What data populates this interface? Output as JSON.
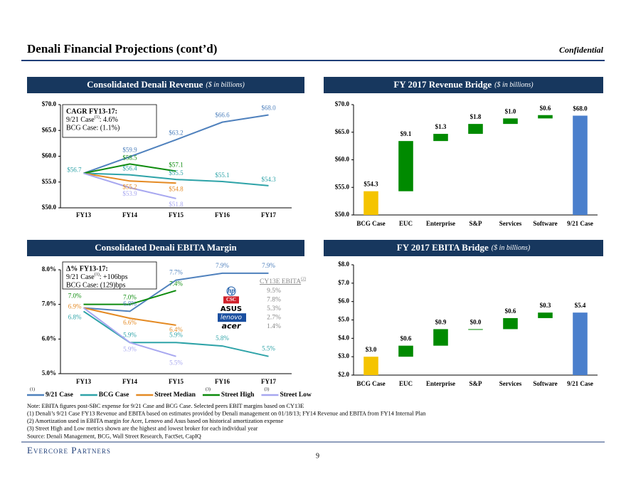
{
  "header": {
    "title": "Denali Financial Projections (cont’d)",
    "label": "Confidential"
  },
  "chart_data": [
    {
      "type": "line",
      "title": "Consolidated Denali Revenue",
      "subtitle": "($ in billions)",
      "categories": [
        "FY13",
        "FY14",
        "FY15",
        "FY16",
        "FY17"
      ],
      "ylim": [
        50,
        70
      ],
      "yticks": [
        {
          "value": 50,
          "label": "$50.0"
        },
        {
          "value": 55,
          "label": "$55.0"
        },
        {
          "value": 60,
          "label": "$60.0"
        },
        {
          "value": 65,
          "label": "$65.0"
        },
        {
          "value": 70,
          "label": "$70.0"
        }
      ],
      "series": [
        {
          "color": "#4f81bd",
          "values": [
            56.7,
            59.9,
            63.2,
            66.6,
            68.0
          ],
          "value_labels": [
            null,
            "$59.9",
            "$63.2",
            "$66.6",
            "$68.0"
          ]
        },
        {
          "color": "#2ea3a8",
          "values": [
            56.7,
            56.4,
            55.5,
            55.1,
            54.3
          ],
          "value_labels": [
            "$56.7",
            "$56.4",
            "$55.5",
            "$55.1",
            "$54.3"
          ]
        },
        {
          "color": "#e48a24",
          "values": [
            56.7,
            55.2,
            54.8,
            null,
            null
          ],
          "value_labels": [
            null,
            "$55.2",
            "$54.8",
            null,
            null
          ]
        },
        {
          "color": "#0d8b0d",
          "values": [
            56.7,
            58.5,
            57.1,
            null,
            null
          ],
          "value_labels": [
            null,
            "$58.5",
            "$57.1",
            null,
            null
          ]
        },
        {
          "color": "#a7a7f0",
          "values": [
            56.7,
            53.9,
            51.8,
            null,
            null
          ],
          "value_labels": [
            null,
            "$53.9",
            "$51.8",
            null,
            null
          ]
        }
      ],
      "annotation": {
        "title": "CAGR FY13-17:",
        "lines": [
          {
            "text": "9/21 Case",
            "sup": "(1)",
            "tail": ": 4.6%"
          },
          {
            "text": "BCG Case: (1.1%)"
          }
        ]
      }
    },
    {
      "type": "waterfall",
      "title": "FY 2017 Revenue Bridge",
      "subtitle": "($ in billions)",
      "categories": [
        "BCG Case",
        "EUC",
        "Enterprise",
        "S&P",
        "Services",
        "Software",
        "9/21 Case"
      ],
      "values": [
        54.3,
        9.1,
        1.3,
        1.8,
        1.0,
        0.6,
        68.0
      ],
      "value_labels": [
        "$54.3",
        "$9.1",
        "$1.3",
        "$1.8",
        "$1.0",
        "$0.6",
        "$68.0"
      ],
      "measure": [
        "absolute",
        "relative",
        "relative",
        "relative",
        "relative",
        "relative",
        "total"
      ],
      "colors": [
        "#f5c400",
        "#008a00",
        "#008a00",
        "#008a00",
        "#008a00",
        "#008a00",
        "#4a7fcc"
      ],
      "ylim": [
        50,
        70
      ],
      "yticks": [
        {
          "value": 50,
          "label": "$50.0"
        },
        {
          "value": 55,
          "label": "$55.0"
        },
        {
          "value": 60,
          "label": "$60.0"
        },
        {
          "value": 65,
          "label": "$65.0"
        },
        {
          "value": 70,
          "label": "$70.0"
        }
      ]
    },
    {
      "type": "line",
      "title": "Consolidated Denali EBITA Margin",
      "categories": [
        "FY13",
        "FY14",
        "FY15",
        "FY16",
        "FY17"
      ],
      "ylim": [
        5,
        8
      ],
      "yticks": [
        {
          "value": 5,
          "label": "5.0%"
        },
        {
          "value": 6,
          "label": "6.0%"
        },
        {
          "value": 7,
          "label": "7.0%"
        },
        {
          "value": 8,
          "label": "8.0%"
        }
      ],
      "series": [
        {
          "name": "9/21 Case",
          "note": "(1)",
          "color": "#4f81bd",
          "values": [
            6.9,
            6.8,
            7.7,
            7.9,
            7.9
          ],
          "value_labels": [
            null,
            "6.8%",
            "7.7%",
            "7.9%",
            "7.9%"
          ]
        },
        {
          "name": "BCG Case",
          "color": "#2ea3a8",
          "values": [
            6.8,
            5.9,
            5.9,
            5.8,
            5.5
          ],
          "value_labels": [
            "6.8%",
            "5.9%",
            "5.9%",
            "5.8%",
            "5.5%"
          ]
        },
        {
          "name": "Street Median",
          "color": "#e48a24",
          "values": [
            6.9,
            6.6,
            6.4,
            null,
            null
          ],
          "value_labels": [
            "6.9%",
            "6.6%",
            "6.4%",
            null,
            null
          ]
        },
        {
          "name": "Street High",
          "note": "(3)",
          "color": "#0d8b0d",
          "values": [
            7.0,
            7.0,
            7.4,
            null,
            null
          ],
          "value_labels": [
            "7.0%",
            "7.0%",
            "7.4%",
            null,
            null
          ]
        },
        {
          "name": "Street Low",
          "note": "(3)",
          "color": "#a7a7f0",
          "values": [
            6.9,
            5.9,
            5.5,
            null,
            null
          ],
          "value_labels": [
            null,
            "5.9%",
            "5.5%",
            null,
            null
          ]
        }
      ],
      "annotation": {
        "title": "Δ% FY13-17:",
        "lines": [
          {
            "text": "9/21 Case",
            "sup": "(1)",
            "tail": ": +106bps"
          },
          {
            "text": "BCG Case: (129)bps"
          }
        ]
      },
      "peers": {
        "title": "CY13E EBITA",
        "note": "(2)",
        "items": [
          {
            "name": "hp",
            "value": "9.5%"
          },
          {
            "name": "CSC",
            "value": "7.8%"
          },
          {
            "name": "ASUS",
            "value": "5.3%"
          },
          {
            "name": "lenovo",
            "value": "2.7%"
          },
          {
            "name": "acer",
            "value": "1.4%"
          }
        ]
      }
    },
    {
      "type": "waterfall",
      "title": "FY 2017 EBITA Bridge",
      "subtitle": "($ in billions)",
      "categories": [
        "BCG Case",
        "EUC",
        "Enterprise",
        "S&P",
        "Services",
        "Software",
        "9/21 Case"
      ],
      "values": [
        3.0,
        0.6,
        0.9,
        0.0,
        0.6,
        0.3,
        5.4
      ],
      "value_labels": [
        "$3.0",
        "$0.6",
        "$0.9",
        "$0.0",
        "$0.6",
        "$0.3",
        "$5.4"
      ],
      "measure": [
        "absolute",
        "relative",
        "relative",
        "relative",
        "relative",
        "relative",
        "total"
      ],
      "colors": [
        "#f5c400",
        "#008a00",
        "#008a00",
        "#008a00",
        "#008a00",
        "#008a00",
        "#4a7fcc"
      ],
      "ylim": [
        2,
        8
      ],
      "yticks": [
        {
          "value": 2,
          "label": "$2.0"
        },
        {
          "value": 3,
          "label": "$3.0"
        },
        {
          "value": 4,
          "label": "$4.0"
        },
        {
          "value": 5,
          "label": "$5.0"
        },
        {
          "value": 6,
          "label": "$6.0"
        },
        {
          "value": 7,
          "label": "$7.0"
        },
        {
          "value": 8,
          "label": "$8.0"
        }
      ]
    }
  ],
  "notes": [
    "Note: EBITA figures post-SBC expense for 9/21 Case and BCG Case. Selected peers EBIT margins based on CY13E",
    "(1) Denali’s 9/21 Case FY13 Revenue and EBITA based on estimates provided by Denali management on 01/18/13; FY14 Revenue and EBITA from FY14 Internal Plan",
    "(2) Amortization used in EBITA margin for Acer, Lenovo and Asus based on historical amortization expense",
    "(3) Street High and Low metrics shown are the highest and lowest broker for each individual year",
    "Source: Denali Management, BCG, Wall Street Research, FactSet, CapIQ"
  ],
  "footer": {
    "brand": "Evercore Partners",
    "page": "9"
  }
}
